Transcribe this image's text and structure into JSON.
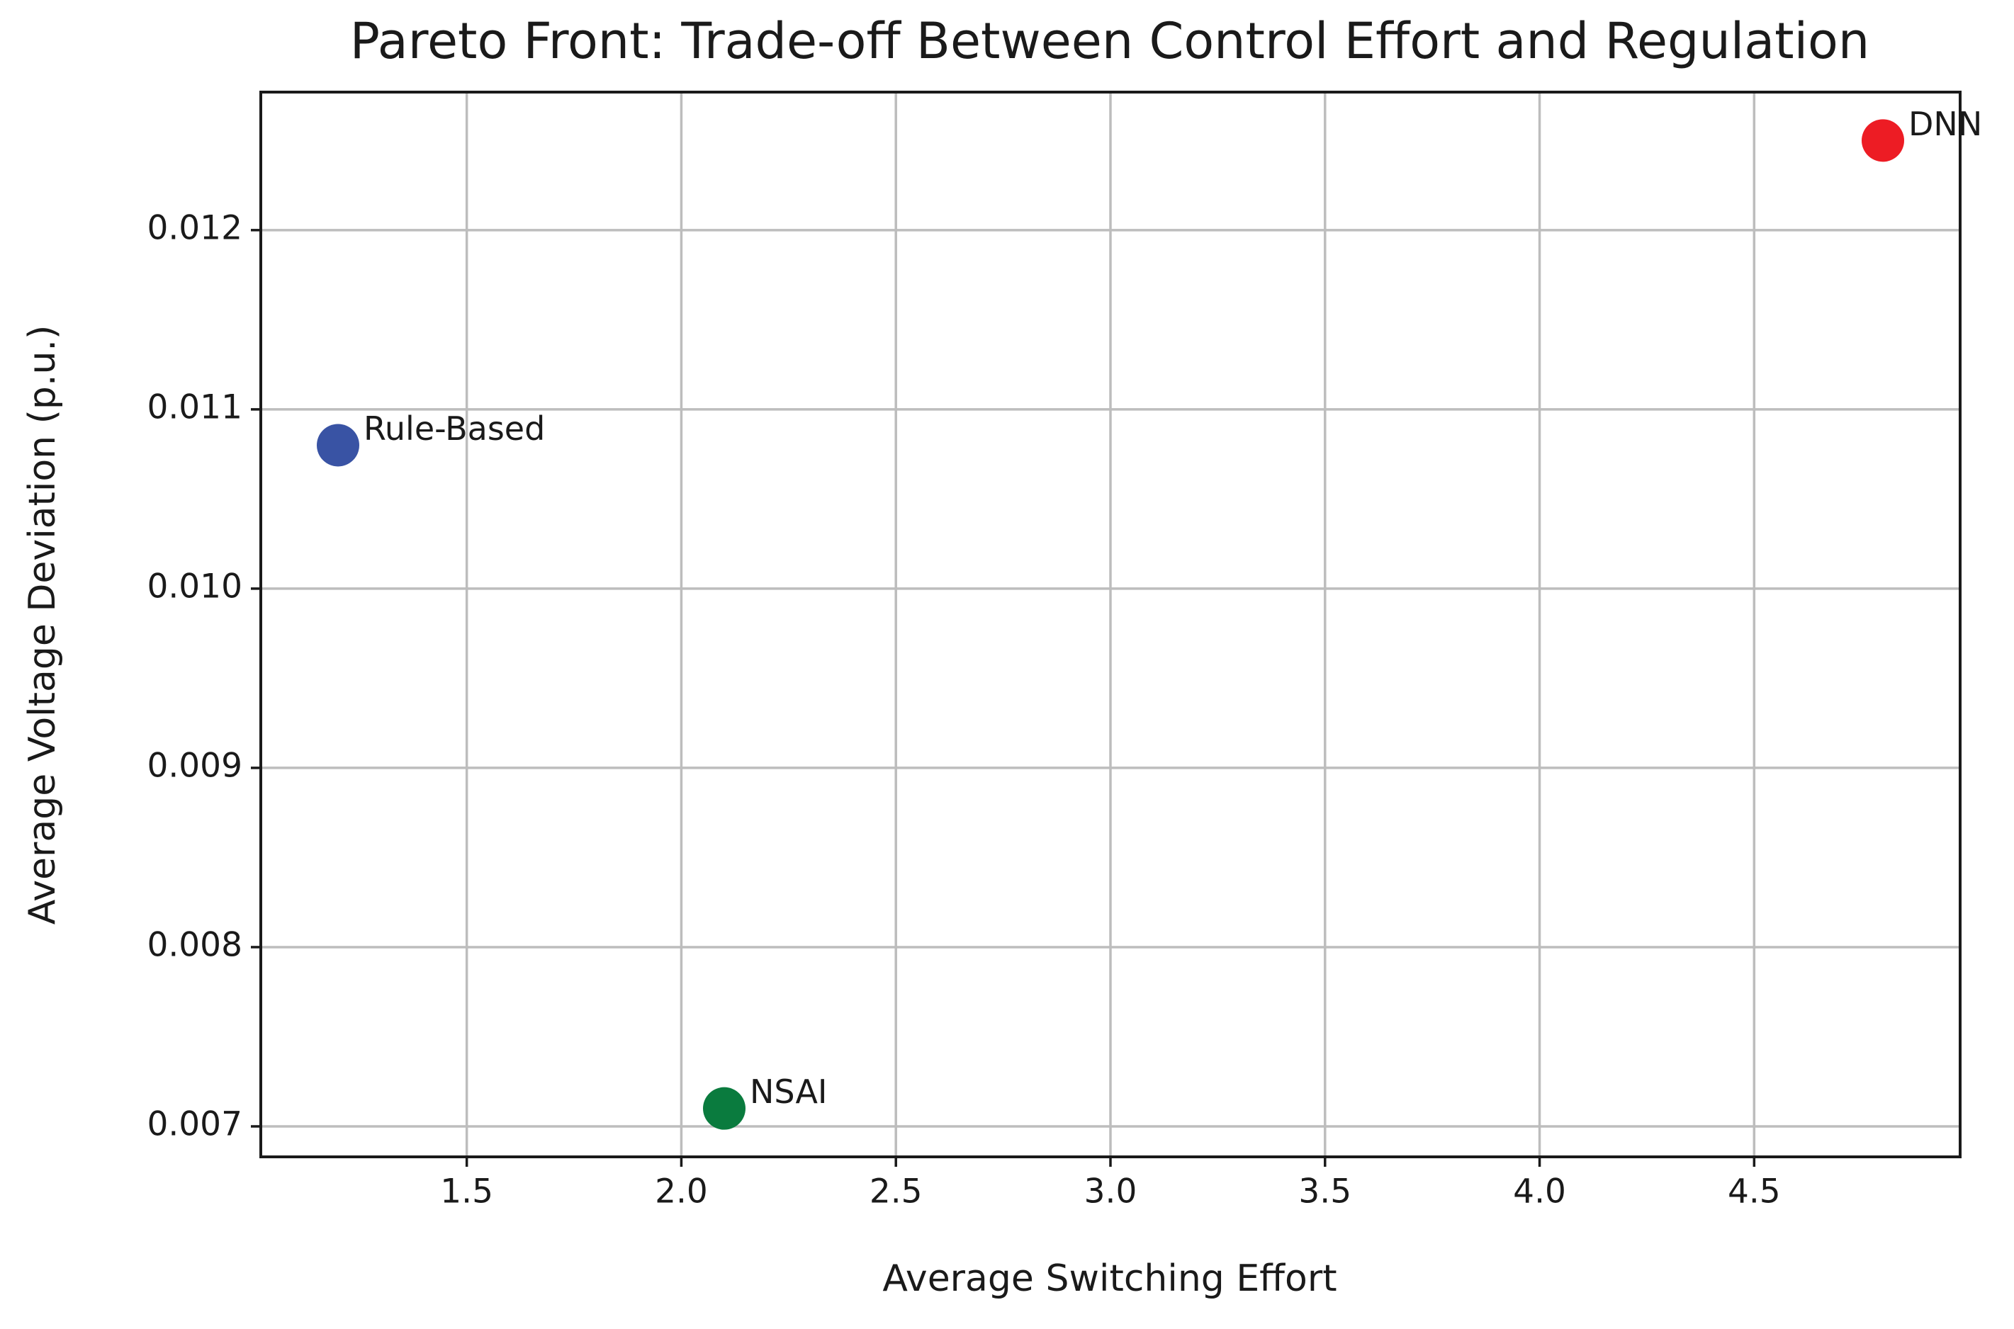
{
  "chart_data": {
    "type": "scatter",
    "title": "Pareto Front: Trade-off Between Control Effort and Regulation",
    "x_label": "Average Switching Effort",
    "y_label": "Average Voltage Deviation (p.u.)",
    "labels": [
      "Rule-Based",
      "NSAI",
      "DNN"
    ],
    "x": [
      1.2,
      2.1,
      4.8
    ],
    "values": [
      0.0108,
      0.0071,
      0.0125
    ],
    "colors": [
      "#3953a4",
      "#0a7b3e",
      "#ed1c24"
    ],
    "xlim": [
      1.02,
      4.98
    ],
    "ylim": [
      0.00683,
      0.01277
    ],
    "xticks": [
      1.5,
      {
        "value": 2.0,
        "label": "2.0"
      },
      2.5,
      {
        "value": 3.0,
        "label": "3.0"
      },
      3.5,
      {
        "value": 4.0,
        "label": "4.0"
      },
      4.5
    ],
    "yticks": [
      0.007,
      0.008,
      0.009,
      {
        "value": 0.01,
        "label": "0.010"
      },
      0.011,
      0.012
    ],
    "grid": true
  }
}
